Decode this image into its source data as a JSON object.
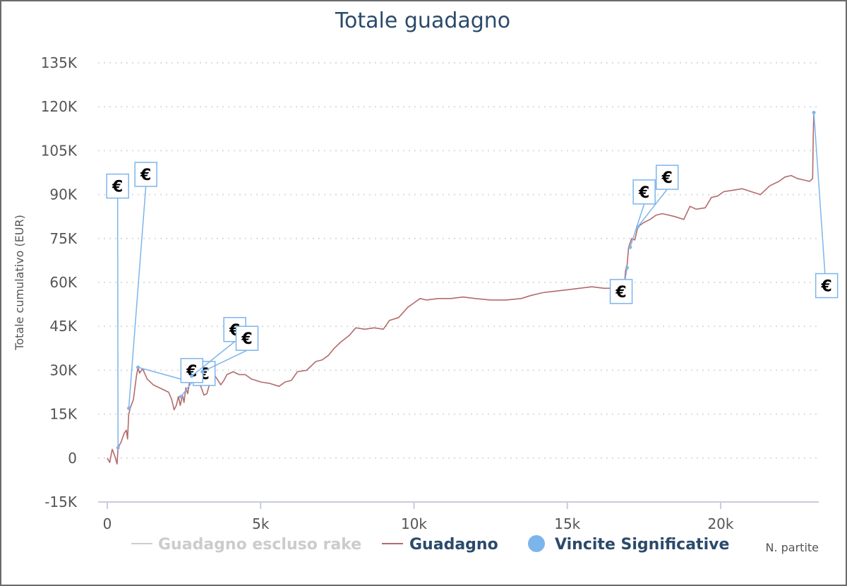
{
  "chart_data": {
    "type": "line",
    "title": "Totale guadagno",
    "xlabel": "N. partite",
    "ylabel": "Totale cumulativo (EUR)",
    "xlim": [
      -300,
      23200
    ],
    "ylim": [
      -15000,
      135000
    ],
    "x_ticks": [
      0,
      5000,
      10000,
      15000,
      20000
    ],
    "x_tick_labels": [
      "0",
      "5k",
      "10k",
      "15k",
      "20k"
    ],
    "y_ticks": [
      -15000,
      0,
      15000,
      30000,
      45000,
      60000,
      75000,
      90000,
      105000,
      120000,
      135000
    ],
    "y_tick_labels": [
      "-15K",
      "0",
      "15K",
      "30K",
      "45K",
      "60K",
      "75K",
      "90K",
      "105K",
      "120K",
      "135K"
    ],
    "grid": "horizontal-dotted",
    "legend_position": "bottom",
    "series": [
      {
        "name": "Guadagno escluso rake",
        "color": "#cccccc",
        "hidden": true,
        "points": []
      },
      {
        "name": "Guadagno",
        "color": "#b36b6b",
        "points": [
          [
            0,
            0
          ],
          [
            80,
            -1500
          ],
          [
            160,
            3000
          ],
          [
            250,
            500
          ],
          [
            320,
            -2000
          ],
          [
            350,
            3500
          ],
          [
            450,
            5500
          ],
          [
            550,
            8500
          ],
          [
            620,
            9500
          ],
          [
            660,
            6500
          ],
          [
            700,
            15000
          ],
          [
            760,
            17500
          ],
          [
            850,
            20000
          ],
          [
            950,
            28000
          ],
          [
            1000,
            31000
          ],
          [
            1050,
            29000
          ],
          [
            1150,
            30500
          ],
          [
            1300,
            27000
          ],
          [
            1500,
            25000
          ],
          [
            1800,
            23500
          ],
          [
            2000,
            22500
          ],
          [
            2100,
            20000
          ],
          [
            2180,
            16500
          ],
          [
            2250,
            18000
          ],
          [
            2320,
            21000
          ],
          [
            2380,
            18000
          ],
          [
            2450,
            21500
          ],
          [
            2500,
            19000
          ],
          [
            2560,
            24000
          ],
          [
            2620,
            22000
          ],
          [
            2700,
            27000
          ],
          [
            2800,
            28000
          ],
          [
            2900,
            26000
          ],
          [
            3050,
            24500
          ],
          [
            3150,
            21500
          ],
          [
            3250,
            22000
          ],
          [
            3350,
            26000
          ],
          [
            3450,
            29000
          ],
          [
            3550,
            27500
          ],
          [
            3700,
            25000
          ],
          [
            3800,
            26500
          ],
          [
            3900,
            28500
          ],
          [
            4100,
            29500
          ],
          [
            4300,
            28500
          ],
          [
            4500,
            28500
          ],
          [
            4700,
            27000
          ],
          [
            5000,
            26000
          ],
          [
            5300,
            25500
          ],
          [
            5600,
            24500
          ],
          [
            5800,
            26000
          ],
          [
            6000,
            26500
          ],
          [
            6200,
            29500
          ],
          [
            6500,
            30000
          ],
          [
            6800,
            33000
          ],
          [
            7000,
            33500
          ],
          [
            7200,
            35000
          ],
          [
            7400,
            37500
          ],
          [
            7600,
            39500
          ],
          [
            7900,
            42000
          ],
          [
            8100,
            44500
          ],
          [
            8400,
            44000
          ],
          [
            8700,
            44500
          ],
          [
            9000,
            44000
          ],
          [
            9200,
            47000
          ],
          [
            9500,
            48000
          ],
          [
            9800,
            51500
          ],
          [
            10000,
            53000
          ],
          [
            10200,
            54500
          ],
          [
            10400,
            54000
          ],
          [
            10800,
            54500
          ],
          [
            11200,
            54500
          ],
          [
            11600,
            55000
          ],
          [
            12000,
            54500
          ],
          [
            12500,
            54000
          ],
          [
            13000,
            54000
          ],
          [
            13500,
            54500
          ],
          [
            13800,
            55500
          ],
          [
            14200,
            56500
          ],
          [
            14600,
            57000
          ],
          [
            15000,
            57500
          ],
          [
            15400,
            58000
          ],
          [
            15800,
            58500
          ],
          [
            16200,
            58000
          ],
          [
            16600,
            58000
          ],
          [
            16850,
            58000
          ],
          [
            16900,
            64000
          ],
          [
            16950,
            66000
          ],
          [
            17000,
            72000
          ],
          [
            17100,
            75000
          ],
          [
            17200,
            74500
          ],
          [
            17300,
            79000
          ],
          [
            17500,
            80500
          ],
          [
            17700,
            81500
          ],
          [
            17900,
            83000
          ],
          [
            18100,
            83500
          ],
          [
            18300,
            83000
          ],
          [
            18500,
            82500
          ],
          [
            18800,
            81500
          ],
          [
            19000,
            86000
          ],
          [
            19200,
            85000
          ],
          [
            19500,
            85500
          ],
          [
            19700,
            89000
          ],
          [
            19900,
            89500
          ],
          [
            20100,
            91000
          ],
          [
            20400,
            91500
          ],
          [
            20700,
            92000
          ],
          [
            21000,
            91000
          ],
          [
            21300,
            90000
          ],
          [
            21600,
            93000
          ],
          [
            21900,
            94500
          ],
          [
            22100,
            96000
          ],
          [
            22300,
            96500
          ],
          [
            22500,
            95500
          ],
          [
            22700,
            95000
          ],
          [
            22900,
            94500
          ],
          [
            23000,
            95500
          ],
          [
            23020,
            110000
          ],
          [
            23040,
            118000
          ]
        ]
      },
      {
        "name": "Vincite Significative",
        "color": "#7cb5ec",
        "marker": "circle",
        "flag_label": "€",
        "points": [
          {
            "x": 350,
            "y": 3500,
            "flag": [
              -20,
              97
            ]
          },
          {
            "x": 700,
            "y": 17000,
            "flag": [
              900,
              101
            ]
          },
          {
            "x": 1000,
            "y": 31000,
            "flag": [
              2800,
              33
            ]
          },
          {
            "x": 2400,
            "y": 21000,
            "flag": [
              2400,
              34
            ]
          },
          {
            "x": 2750,
            "y": 28000,
            "flag": [
              3800,
              48
            ]
          },
          {
            "x": 3100,
            "y": 29500,
            "flag": [
              4200,
              45
            ]
          },
          {
            "x": 16950,
            "y": 65000,
            "flag": [
              16400,
              61
            ]
          },
          {
            "x": 17050,
            "y": 72000,
            "flag": [
              17150,
              95
            ]
          },
          {
            "x": 17300,
            "y": 79000,
            "flag": [
              17900,
              100
            ]
          },
          {
            "x": 23040,
            "y": 118000,
            "flag": [
              23100,
              63
            ]
          }
        ]
      }
    ]
  }
}
